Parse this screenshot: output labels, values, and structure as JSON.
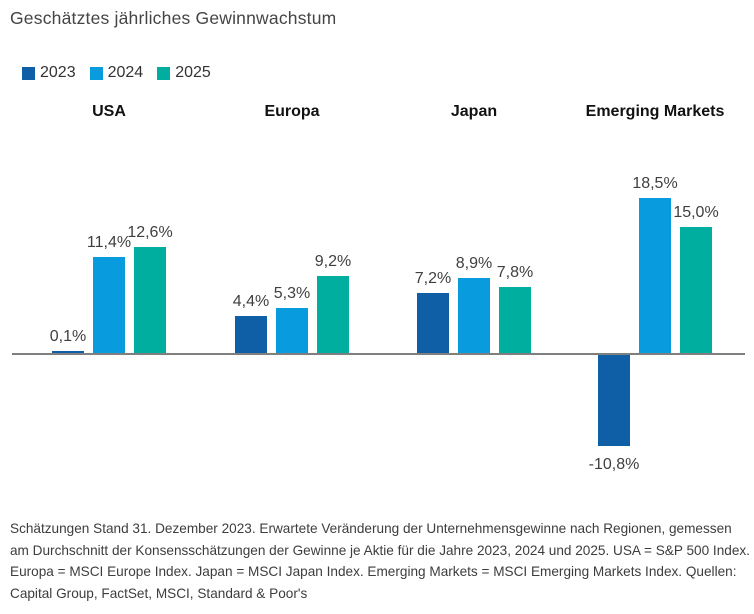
{
  "page": {
    "title": "Geschätztes jährliches Gewinnwachstum"
  },
  "legend": {
    "items": [
      {
        "label": "2023",
        "color": "#0e5fa5"
      },
      {
        "label": "2024",
        "color": "#089cdf"
      },
      {
        "label": "2025",
        "color": "#00aea0"
      }
    ]
  },
  "chart_data": {
    "type": "bar",
    "title": "Geschätztes jährliches Gewinnwachstum",
    "categories": [
      "USA",
      "Europa",
      "Japan",
      "Emerging Markets"
    ],
    "series": [
      {
        "name": "2023",
        "color": "#0e5fa5",
        "values": [
          0.1,
          4.4,
          7.2,
          -10.8
        ]
      },
      {
        "name": "2024",
        "color": "#089cdf",
        "values": [
          11.4,
          5.3,
          8.9,
          18.5
        ]
      },
      {
        "name": "2025",
        "color": "#00aea0",
        "values": [
          12.6,
          9.2,
          7.8,
          15.0
        ]
      }
    ],
    "value_labels": [
      [
        "0,1%",
        "4,4%",
        "7,2%",
        "-10,8%"
      ],
      [
        "11,4%",
        "5,3%",
        "8,9%",
        "18,5%"
      ],
      [
        "12,6%",
        "9,2%",
        "7,8%",
        "15,0%"
      ]
    ],
    "xlabel": "",
    "ylabel": "",
    "y_axis_hidden": true,
    "zero_line": true,
    "axis_color": "#7f7f7f",
    "value_label_color": "#3f3f3f",
    "legend_position": "top-left",
    "grid": false
  },
  "footnote": {
    "text": "Schätzungen Stand 31. Dezember 2023. Erwartete Veränderung der Unternehmensgewinne nach Regionen, gemessen am Durchschnitt der Konsensschätzungen der Gewinne je Aktie für die Jahre 2023, 2024 und 2025. USA = S&P 500 Index. Europa = MSCI Europe Index. Japan = MSCI Japan Index. Emerging Markets = MSCI Emerging Markets Index. Quellen: Capital Group, FactSet, MSCI, Standard & Poor's"
  }
}
